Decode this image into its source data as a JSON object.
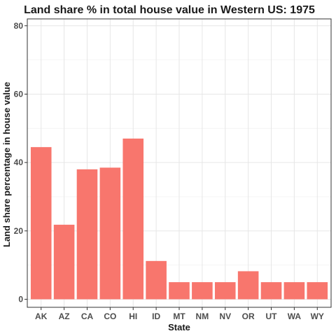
{
  "chart_data": {
    "type": "bar",
    "title": "Land share % in total house value in Western US: 1975",
    "xlabel": "State",
    "ylabel": "Land share percentage in house value",
    "categories": [
      "AK",
      "AZ",
      "CA",
      "CO",
      "HI",
      "ID",
      "MT",
      "NM",
      "NV",
      "OR",
      "UT",
      "WA",
      "WY"
    ],
    "values": [
      44.5,
      21.8,
      38,
      38.5,
      47,
      11.2,
      5,
      5,
      5,
      8.2,
      5,
      5,
      5
    ],
    "ylim": [
      -2.35,
      82
    ],
    "yticks": [
      0,
      20,
      40,
      60,
      80
    ],
    "grid": true,
    "legend": "none",
    "colors": {
      "bar": "#F8766D"
    }
  }
}
